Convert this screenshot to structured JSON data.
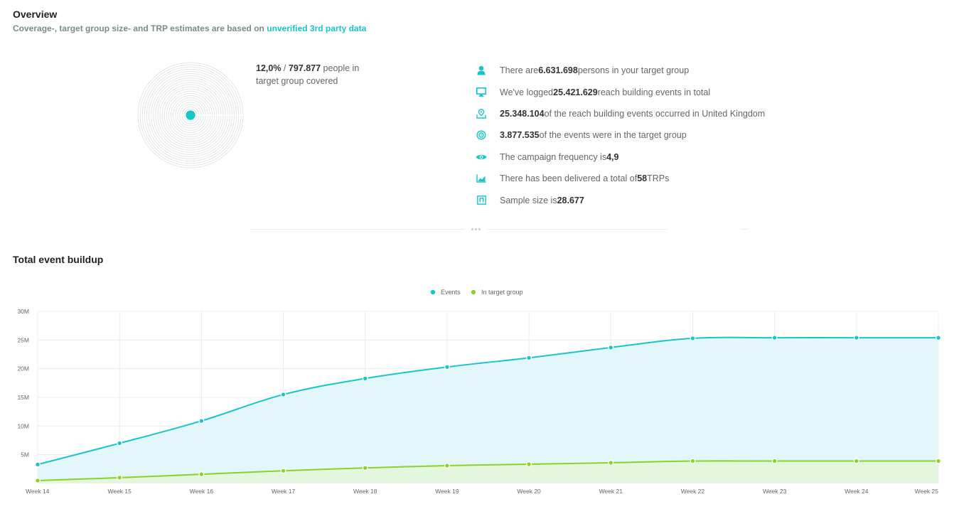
{
  "overview": {
    "title": "Overview",
    "subtitle_prefix": "Coverage-, target group size- and TRP estimates are based on",
    "subtitle_link": "unverified 3rd party data"
  },
  "coverage": {
    "percent": "12,0%",
    "separator": " / ",
    "people": "797.877",
    "suffix": "people in target group covered",
    "fraction": 0.12
  },
  "stats": [
    {
      "icon": "person-icon",
      "pre": "There are ",
      "value": "6.631.698",
      "post": " persons in your target group"
    },
    {
      "icon": "monitor-icon",
      "pre": "We've logged ",
      "value": "25.421.629",
      "post": " reach building events in total"
    },
    {
      "icon": "location-icon",
      "pre": "",
      "value": "25.348.104",
      "post": " of the reach building events occurred in United Kingdom"
    },
    {
      "icon": "target-icon",
      "pre": "",
      "value": "3.877.535",
      "post": " of the events were in the target group"
    },
    {
      "icon": "eye-icon",
      "pre": "The campaign frequency is ",
      "value": "4,9",
      "post": ""
    },
    {
      "icon": "area-chart-icon",
      "pre": "There has been delivered a total of ",
      "value": "58",
      "post": " TRPs"
    },
    {
      "icon": "sample-icon",
      "pre": "Sample size is ",
      "value": "28.677",
      "post": ""
    }
  ],
  "buildup": {
    "title": "Total event buildup"
  },
  "colors": {
    "accent": "#16c6c9",
    "green": "#8ad22a",
    "events_fill": "#e3f6fa",
    "target_fill": "#e3f7de"
  },
  "chart_data": {
    "type": "area",
    "categories": [
      "Week 14",
      "Week 15",
      "Week 16",
      "Week 17",
      "Week 18",
      "Week 19",
      "Week 20",
      "Week 21",
      "Week 22",
      "Week 23",
      "Week 24",
      "Week 25"
    ],
    "series": [
      {
        "name": "Events",
        "values": [
          3.3,
          7.0,
          10.9,
          15.5,
          18.3,
          20.3,
          21.9,
          23.7,
          25.3,
          25.4,
          25.4,
          25.4
        ]
      },
      {
        "name": "In target group",
        "values": [
          0.5,
          1.0,
          1.6,
          2.2,
          2.7,
          3.1,
          3.35,
          3.6,
          3.9,
          3.9,
          3.9,
          3.9
        ]
      }
    ],
    "ylim": [
      0,
      30
    ],
    "yticks": [
      5,
      10,
      15,
      20,
      25,
      30
    ],
    "ytick_labels": [
      "5M",
      "10M",
      "15M",
      "20M",
      "25M",
      "30M"
    ],
    "legend_position": "top-center",
    "grid": true
  }
}
